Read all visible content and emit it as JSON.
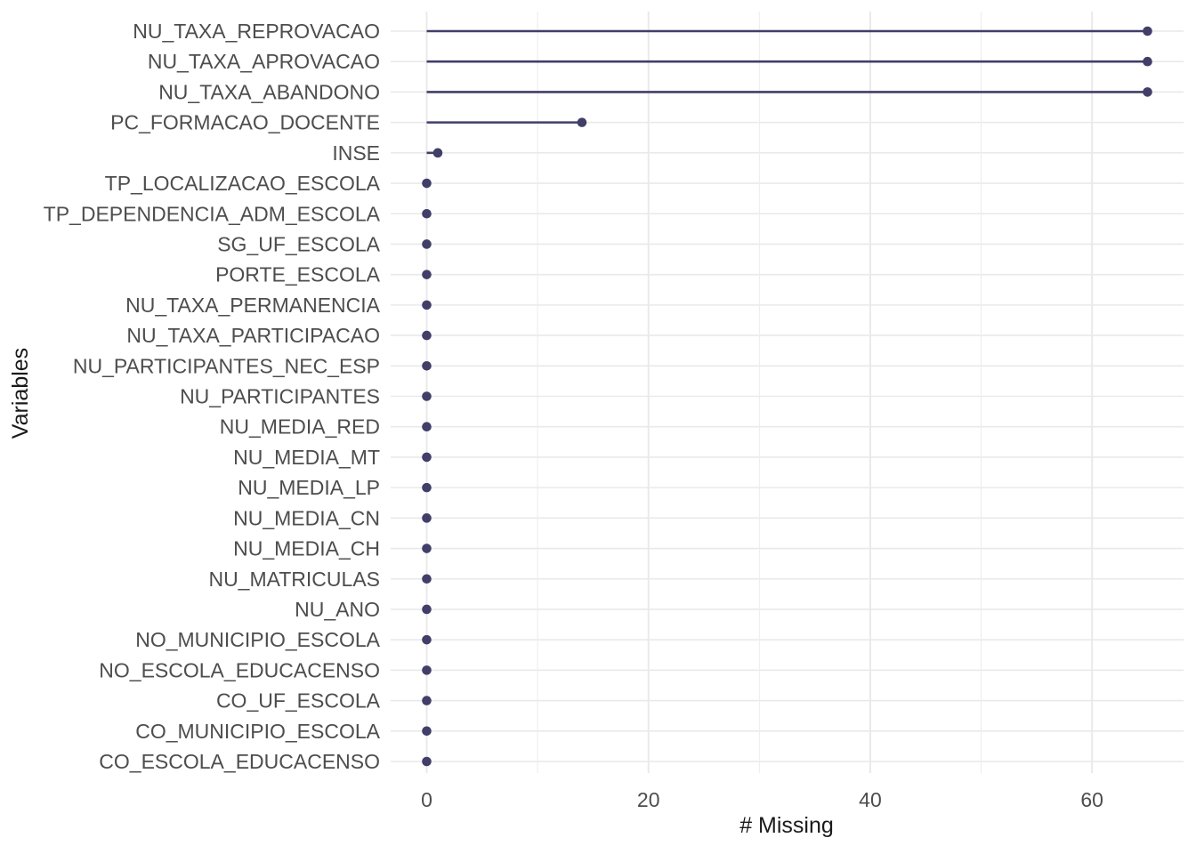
{
  "chart_data": {
    "type": "bar",
    "variant": "horizontal-lollipop",
    "title": "",
    "xlabel": "# Missing",
    "ylabel": "Variables",
    "categories": [
      "NU_TAXA_REPROVACAO",
      "NU_TAXA_APROVACAO",
      "NU_TAXA_ABANDONO",
      "PC_FORMACAO_DOCENTE",
      "INSE",
      "TP_LOCALIZACAO_ESCOLA",
      "TP_DEPENDENCIA_ADM_ESCOLA",
      "SG_UF_ESCOLA",
      "PORTE_ESCOLA",
      "NU_TAXA_PERMANENCIA",
      "NU_TAXA_PARTICIPACAO",
      "NU_PARTICIPANTES_NEC_ESP",
      "NU_PARTICIPANTES",
      "NU_MEDIA_RED",
      "NU_MEDIA_MT",
      "NU_MEDIA_LP",
      "NU_MEDIA_CN",
      "NU_MEDIA_CH",
      "NU_MATRICULAS",
      "NU_ANO",
      "NO_MUNICIPIO_ESCOLA",
      "NO_ESCOLA_EDUCACENSO",
      "CO_UF_ESCOLA",
      "CO_MUNICIPIO_ESCOLA",
      "CO_ESCOLA_EDUCACENSO"
    ],
    "values": [
      65,
      65,
      65,
      14,
      1,
      0,
      0,
      0,
      0,
      0,
      0,
      0,
      0,
      0,
      0,
      0,
      0,
      0,
      0,
      0,
      0,
      0,
      0,
      0,
      0
    ],
    "x_ticks": [
      0,
      20,
      40,
      60
    ],
    "x_minor_ticks": [
      10,
      30,
      50
    ],
    "xlim": [
      -3.25,
      68.25
    ],
    "grid": "major-and-minor-x, major-y, no panel border",
    "legend": "none",
    "colors": {
      "point": "#413e68",
      "grid_major": "#e9e9e9",
      "grid_minor": "#ededed",
      "axis_text": "#4d4d4d",
      "axis_title": "#1a1a1a",
      "background": "#ffffff"
    }
  }
}
